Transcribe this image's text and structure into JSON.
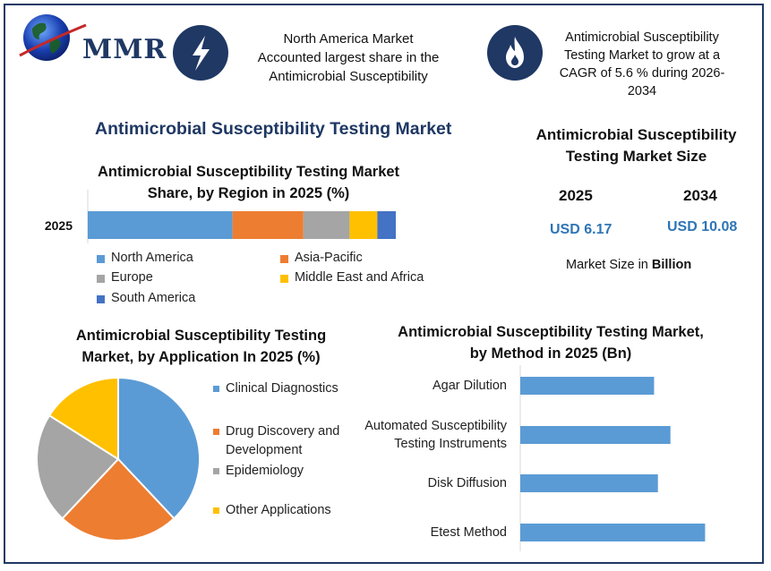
{
  "logo": {
    "text": "MMR"
  },
  "headline_left": {
    "icon": "lightning-icon",
    "lines": [
      "North America Market",
      "Accounted largest share in the",
      "Antimicrobial Susceptibility"
    ]
  },
  "headline_right": {
    "icon": "flame-icon",
    "lines": [
      "Antimicrobial Susceptibility",
      "Testing Market to grow at a",
      "CAGR of 5.6 % during 2026-",
      "2034"
    ]
  },
  "main_title": "Antimicrobial Susceptibility Testing Market",
  "market_size": {
    "title_lines": [
      "Antimicrobial Susceptibility",
      "Testing Market Size"
    ],
    "year1": "2025",
    "value1": "USD 6.17",
    "year2": "2034",
    "value2": "USD 10.08",
    "unit_prefix": "Market Size in",
    "unit_bold": "Billion"
  },
  "colors": {
    "north_america": "#5b9bd5",
    "asia_pacific": "#ed7d31",
    "europe": "#a5a5a5",
    "mea": "#ffc000",
    "south_america": "#4472c4",
    "title_blue": "#1f3864",
    "value_blue": "#2e75b6"
  },
  "chart_data": [
    {
      "type": "bar",
      "orientation": "horizontal-stacked",
      "title_lines": [
        "Antimicrobial Susceptibility Testing Market",
        "Share, by Region in 2025 (%)"
      ],
      "categories": [
        "2025"
      ],
      "series": [
        {
          "name": "North America",
          "values": [
            47
          ]
        },
        {
          "name": "Asia-Pacific",
          "values": [
            23
          ]
        },
        {
          "name": "Europe",
          "values": [
            15
          ]
        },
        {
          "name": "Middle East and Africa",
          "values": [
            9
          ]
        },
        {
          "name": "South America",
          "values": [
            6
          ]
        }
      ],
      "legend": "bottom"
    },
    {
      "type": "pie",
      "title_lines": [
        "Antimicrobial Susceptibility Testing",
        "Market, by Application In 2025 (%)"
      ],
      "slices": [
        {
          "name_lines": [
            "Clinical Diagnostics"
          ],
          "value": 38,
          "color": "#5b9bd5"
        },
        {
          "name_lines": [
            "Drug Discovery and",
            "Development"
          ],
          "value": 24,
          "color": "#ed7d31"
        },
        {
          "name_lines": [
            "Epidemiology"
          ],
          "value": 22,
          "color": "#a5a5a5"
        },
        {
          "name_lines": [
            "Other Applications"
          ],
          "value": 16,
          "color": "#ffc000"
        }
      ],
      "legend": "right"
    },
    {
      "type": "bar",
      "orientation": "horizontal",
      "title_lines": [
        "Antimicrobial Susceptibility Testing Market,",
        "by  Method in 2025 (Bn)"
      ],
      "categories": [
        {
          "lines": [
            "Agar Dilution"
          ]
        },
        {
          "lines": [
            "Automated Susceptibility",
            "Testing Instruments"
          ]
        },
        {
          "lines": [
            "Disk Diffusion"
          ]
        },
        {
          "lines": [
            "Etest Method"
          ]
        }
      ],
      "values": [
        1.39,
        1.56,
        1.43,
        1.92
      ],
      "xlim": [
        0,
        2.4
      ],
      "color": "#5b9bd5"
    }
  ]
}
